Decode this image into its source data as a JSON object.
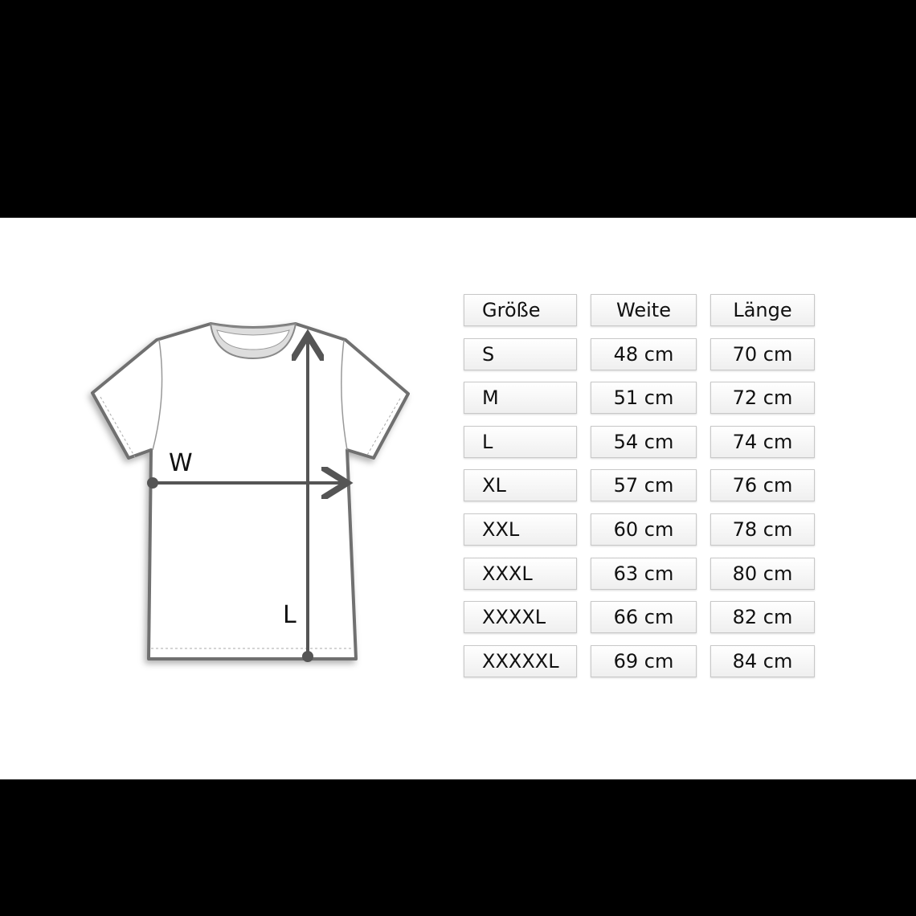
{
  "diagram": {
    "width_label": "W",
    "length_label": "L",
    "colors": {
      "outline": "#707070",
      "arrow": "#555555",
      "collar": "#d9d9d9"
    }
  },
  "table": {
    "headers": [
      "Größe",
      "Weite",
      "Länge"
    ],
    "rows": [
      [
        "S",
        "48 cm",
        "70 cm"
      ],
      [
        "M",
        "51 cm",
        "72 cm"
      ],
      [
        "L",
        "54 cm",
        "74 cm"
      ],
      [
        "XL",
        "57 cm",
        "76 cm"
      ],
      [
        "XXL",
        "60 cm",
        "78 cm"
      ],
      [
        "XXXL",
        "63 cm",
        "80 cm"
      ],
      [
        "XXXXL",
        "66 cm",
        "82 cm"
      ],
      [
        "XXXXXL",
        "69 cm",
        "84 cm"
      ]
    ]
  }
}
